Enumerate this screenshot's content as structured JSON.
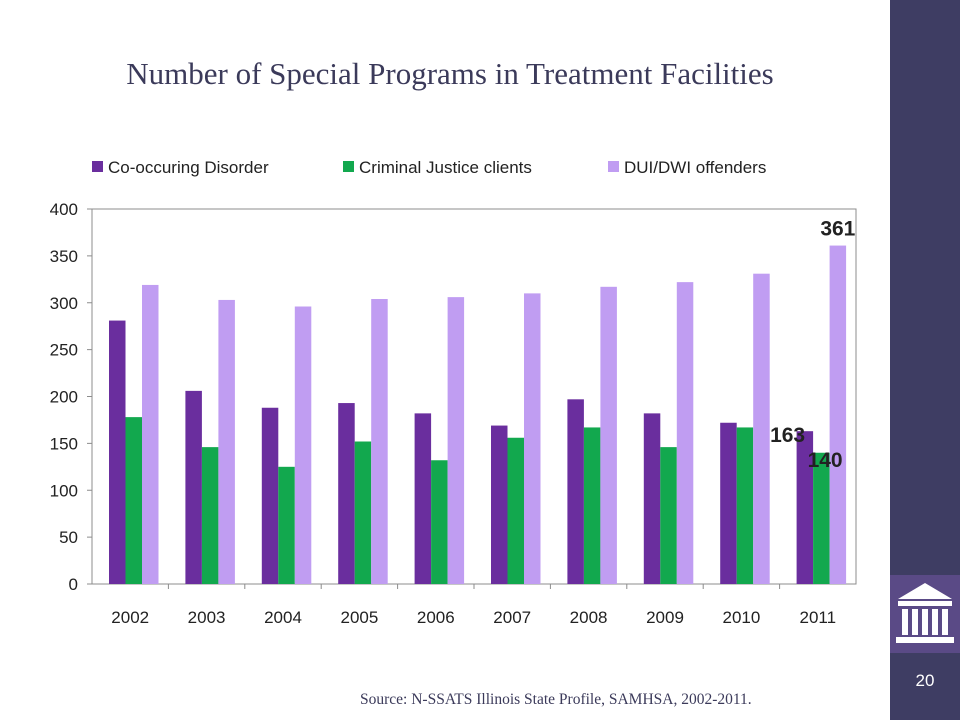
{
  "page": {
    "number": "20",
    "source": "Source: N-SSATS Illinois State Profile, SAMHSA, 2002-2011."
  },
  "colors": {
    "sidebar": "#3e3d63",
    "co_occurring": "#6a2e9e",
    "criminal_justice": "#12a84e",
    "dui_dwi": "#c09df2",
    "title": "#3b3a5a"
  },
  "icons": {
    "logo": "building-columns-icon"
  },
  "chart_data": {
    "type": "bar",
    "title": "Number of Special Programs in Treatment Facilities",
    "xlabel": "",
    "ylabel": "",
    "categories": [
      "2002",
      "2003",
      "2004",
      "2005",
      "2006",
      "2007",
      "2008",
      "2009",
      "2010",
      "2011"
    ],
    "series": [
      {
        "name": "Co-occuring Disorder",
        "color": "#6a2e9e",
        "values": [
          281,
          206,
          188,
          193,
          182,
          169,
          197,
          182,
          172,
          163
        ]
      },
      {
        "name": "Criminal Justice clients",
        "color": "#12a84e",
        "values": [
          178,
          146,
          125,
          152,
          132,
          156,
          167,
          146,
          167,
          140
        ]
      },
      {
        "name": "DUI/DWI offenders",
        "color": "#c09df2",
        "values": [
          319,
          303,
          296,
          304,
          306,
          310,
          317,
          322,
          331,
          361
        ]
      }
    ],
    "ylim": [
      0,
      400
    ],
    "yticks": [
      0,
      50,
      100,
      150,
      200,
      250,
      300,
      350,
      400
    ],
    "grid": false,
    "legend": "top",
    "data_labels": [
      {
        "category": "2011",
        "series": "DUI/DWI offenders",
        "text": "361"
      },
      {
        "category": "2011",
        "series": "Co-occuring Disorder",
        "text": "163"
      },
      {
        "category": "2011",
        "series": "Criminal Justice clients",
        "text": "140"
      }
    ]
  }
}
